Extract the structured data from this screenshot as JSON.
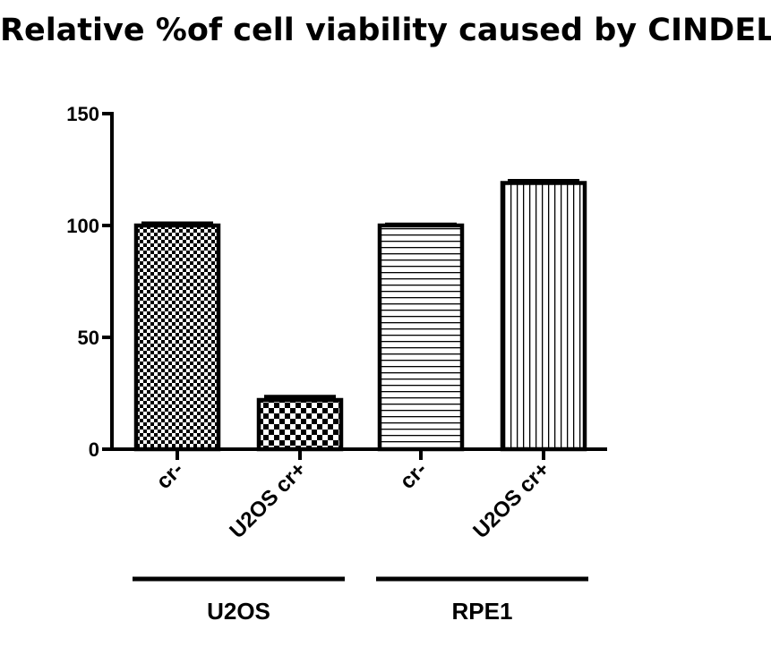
{
  "chart_data": {
    "type": "bar",
    "title": "Relative %of cell viability caused by CINDELA",
    "xlabel": "",
    "ylabel": "",
    "ylim": [
      0,
      150
    ],
    "yticks": [
      "0",
      "50",
      "100",
      "150"
    ],
    "categories": [
      "cr-",
      "U2OS cr+",
      "cr-",
      "U2OS cr+"
    ],
    "values": [
      100,
      22,
      100,
      119
    ],
    "errors": [
      1,
      1.5,
      0.5,
      1
    ],
    "patterns": [
      "fine-checker",
      "coarse-checker",
      "horizontal-lines",
      "vertical-lines"
    ],
    "groups": [
      {
        "label": "U2OS",
        "categories": [
          0,
          1
        ]
      },
      {
        "label": "RPE1",
        "categories": [
          2,
          3
        ]
      }
    ],
    "grid": false,
    "legend": "none",
    "bar_fill": "#ffffff",
    "bar_stroke": "#000000"
  }
}
